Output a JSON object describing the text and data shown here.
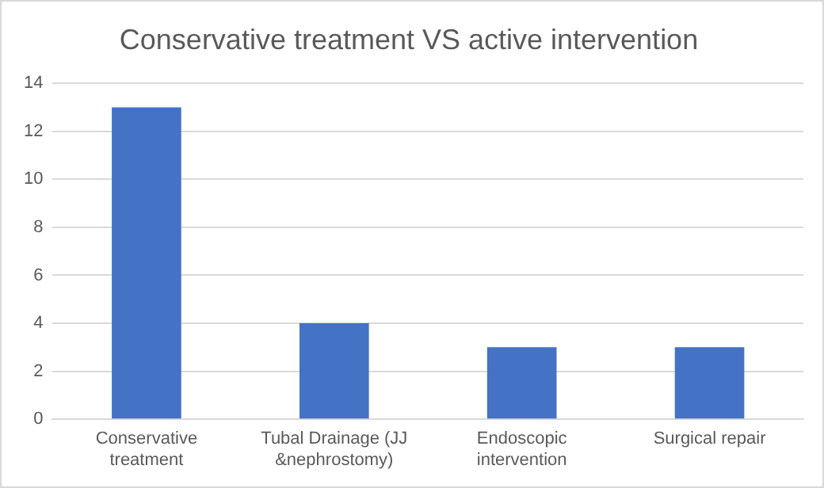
{
  "chart_data": {
    "type": "bar",
    "title": "Conservative treatment VS active intervention",
    "categories": [
      "Conservative treatment",
      "Tubal Drainage (JJ &nephrostomy)",
      "Endoscopic intervention",
      "Surgical repair"
    ],
    "values": [
      13,
      4,
      3,
      3
    ],
    "color": "#4472c4",
    "ylim": [
      0,
      14
    ],
    "yticks": [
      0,
      2,
      4,
      6,
      8,
      10,
      12,
      14
    ],
    "grid": "y",
    "legend": false
  }
}
